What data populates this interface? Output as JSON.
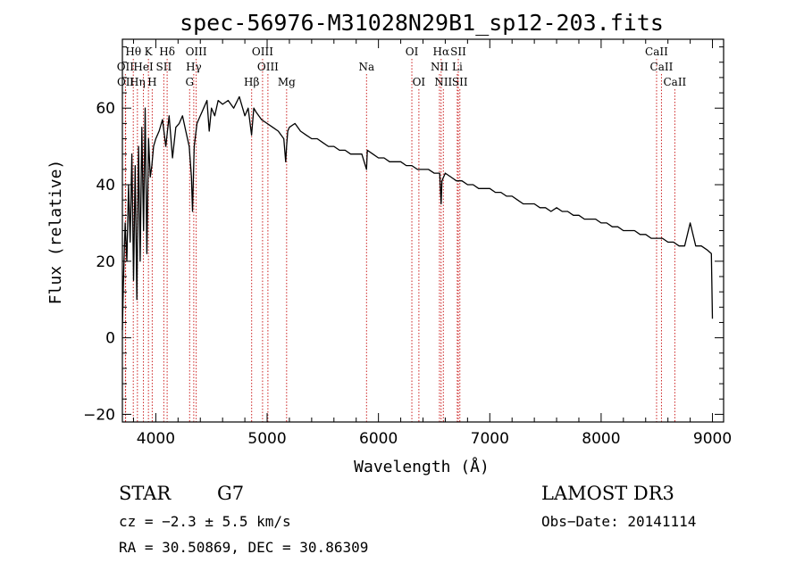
{
  "chart_data": {
    "type": "line",
    "title": "spec-56976-M31028N29B1_sp12-203.fits",
    "xlabel": "Wavelength (Å)",
    "ylabel": "Flux (relative)",
    "xlim": [
      3700,
      9100
    ],
    "ylim": [
      -22,
      78
    ],
    "xticks": [
      4000,
      5000,
      6000,
      7000,
      8000,
      9000
    ],
    "yticks": [
      -20,
      0,
      20,
      40,
      60
    ],
    "spectrum": {
      "x": [
        3700,
        3710,
        3725,
        3740,
        3755,
        3770,
        3785,
        3800,
        3815,
        3830,
        3845,
        3860,
        3875,
        3890,
        3905,
        3920,
        3935,
        3950,
        3965,
        3980,
        4000,
        4030,
        4060,
        4090,
        4120,
        4150,
        4180,
        4210,
        4240,
        4270,
        4300,
        4320,
        4330,
        4345,
        4370,
        4400,
        4430,
        4460,
        4480,
        4500,
        4530,
        4560,
        4600,
        4650,
        4700,
        4750,
        4800,
        4830,
        4860,
        4880,
        4900,
        4950,
        5000,
        5050,
        5100,
        5150,
        5167,
        5175,
        5185,
        5200,
        5250,
        5300,
        5350,
        5400,
        5450,
        5500,
        5550,
        5600,
        5650,
        5700,
        5750,
        5800,
        5850,
        5893,
        5900,
        5950,
        6000,
        6050,
        6100,
        6150,
        6200,
        6250,
        6300,
        6350,
        6400,
        6450,
        6500,
        6550,
        6563,
        6570,
        6600,
        6650,
        6700,
        6750,
        6800,
        6850,
        6900,
        6950,
        7000,
        7050,
        7100,
        7150,
        7200,
        7250,
        7300,
        7350,
        7400,
        7450,
        7500,
        7550,
        7600,
        7650,
        7700,
        7750,
        7800,
        7850,
        7900,
        7950,
        8000,
        8050,
        8100,
        8150,
        8200,
        8250,
        8300,
        8350,
        8400,
        8450,
        8500,
        8550,
        8600,
        8650,
        8700,
        8750,
        8800,
        8850,
        8900,
        8950,
        8990,
        9000
      ],
      "y": [
        2,
        15,
        30,
        20,
        40,
        25,
        48,
        15,
        45,
        10,
        50,
        20,
        55,
        28,
        60,
        22,
        52,
        42,
        45,
        50,
        52,
        54,
        57,
        50,
        58,
        47,
        55,
        56,
        58,
        54,
        50,
        42,
        33,
        50,
        56,
        58,
        60,
        62,
        54,
        60,
        58,
        62,
        61,
        62,
        60,
        63,
        58,
        60,
        53,
        60,
        59,
        57,
        56,
        55,
        54,
        52,
        46,
        50,
        54,
        55,
        56,
        54,
        53,
        52,
        52,
        51,
        50,
        50,
        49,
        49,
        48,
        48,
        48,
        44,
        49,
        48,
        47,
        47,
        46,
        46,
        46,
        45,
        45,
        44,
        44,
        44,
        43,
        43,
        35,
        41,
        43,
        42,
        41,
        41,
        40,
        40,
        39,
        39,
        39,
        38,
        38,
        37,
        37,
        36,
        35,
        35,
        35,
        34,
        34,
        33,
        34,
        33,
        33,
        32,
        32,
        31,
        31,
        31,
        30,
        30,
        29,
        29,
        28,
        28,
        28,
        27,
        27,
        26,
        26,
        26,
        25,
        25,
        24,
        24,
        30,
        24,
        24,
        23,
        22,
        5
      ]
    },
    "lines": [
      {
        "name": "Hθ",
        "wl": 3798,
        "row": 0
      },
      {
        "name": "K",
        "wl": 3934,
        "row": 0
      },
      {
        "name": "Hδ",
        "wl": 4102,
        "row": 0
      },
      {
        "name": "OIII",
        "wl": 4363,
        "row": 0
      },
      {
        "name": "OIII",
        "wl": 4959,
        "row": 0
      },
      {
        "name": "OI",
        "wl": 6300,
        "row": 0
      },
      {
        "name": "Hα",
        "wl": 6563,
        "row": 0
      },
      {
        "name": "SII",
        "wl": 6717,
        "row": 0
      },
      {
        "name": "CaII",
        "wl": 8498,
        "row": 0
      },
      {
        "name": "OII",
        "wl": 3727,
        "row": 1
      },
      {
        "name": "HeI",
        "wl": 3889,
        "row": 1
      },
      {
        "name": "SII",
        "wl": 4072,
        "row": 1
      },
      {
        "name": "Hγ",
        "wl": 4341,
        "row": 1
      },
      {
        "name": "OIII",
        "wl": 5007,
        "row": 1
      },
      {
        "name": "Na",
        "wl": 5893,
        "row": 1
      },
      {
        "name": "NII",
        "wl": 6548,
        "row": 1
      },
      {
        "name": "Li",
        "wl": 6708,
        "row": 1
      },
      {
        "name": "CaII",
        "wl": 8542,
        "row": 1
      },
      {
        "name": "OII",
        "wl": 3729,
        "row": 2
      },
      {
        "name": "Hη",
        "wl": 3835,
        "row": 2
      },
      {
        "name": "H",
        "wl": 3968,
        "row": 2
      },
      {
        "name": "G",
        "wl": 4304,
        "row": 2
      },
      {
        "name": "Hβ",
        "wl": 4861,
        "row": 2
      },
      {
        "name": "Mg",
        "wl": 5175,
        "row": 2
      },
      {
        "name": "OI",
        "wl": 6363,
        "row": 2
      },
      {
        "name": "NII",
        "wl": 6583,
        "row": 2
      },
      {
        "name": "SII",
        "wl": 6731,
        "row": 2
      },
      {
        "name": "CaII",
        "wl": 8662,
        "row": 2
      }
    ]
  },
  "info": {
    "class": "STAR",
    "subclass": "G7",
    "survey": "LAMOST DR3",
    "cz": "cz = −2.3 ± 5.5 km/s",
    "obs_date": "Obs−Date: 20141114",
    "radec": "RA =  30.50869, DEC =  30.86309"
  },
  "colors": {
    "line_marker": "#cc2222",
    "axis": "#000000",
    "spectrum": "#000000"
  }
}
